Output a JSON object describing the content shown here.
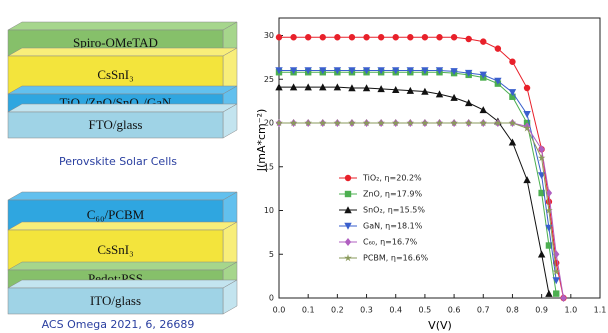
{
  "diagrams": {
    "top_stack": {
      "layers": [
        "Spiro-OMeTAD",
        "CsSnI₃",
        "TiO₂/ZnO/SnO₂/GaN",
        "FTO/glass"
      ],
      "caption": "Perovskite Solar Cells"
    },
    "bottom_stack": {
      "layers": [
        "C₆₀/PCBM",
        "CsSnI₃",
        "Pedot:PSS",
        "ITO/glass"
      ],
      "caption": "ACS Omega 2021, 6, 26689"
    }
  },
  "chart_data": {
    "type": "line",
    "x_label": "V(V)",
    "y_label": "J(mA*cm⁻²)",
    "x": [
      0,
      0.05,
      0.1,
      0.15,
      0.2,
      0.25,
      0.3,
      0.35,
      0.4,
      0.45,
      0.5,
      0.55,
      0.6,
      0.65,
      0.7,
      0.75,
      0.8,
      0.85,
      0.9,
      0.925,
      0.95,
      0.975
    ],
    "xlim": [
      0,
      1.1
    ],
    "xticks": [
      {
        "value": 0,
        "label": "0.0"
      },
      0.1,
      0.2,
      0.3,
      0.4,
      0.5,
      0.6,
      0.7,
      0.8,
      0.9,
      {
        "value": 1,
        "label": "1.0"
      },
      1.1
    ],
    "ylim": [
      0,
      32
    ],
    "yticks": [
      0,
      5,
      10,
      15,
      20,
      25,
      30
    ],
    "legend": "lower left",
    "series": [
      {
        "name": "TiO₂,   η=20.2%",
        "color": "#e8202a",
        "marker": "circle",
        "values": [
          29.8,
          29.8,
          29.8,
          29.8,
          29.8,
          29.8,
          29.8,
          29.8,
          29.8,
          29.8,
          29.8,
          29.8,
          29.8,
          29.6,
          29.3,
          28.5,
          27,
          24,
          17,
          11,
          4,
          0
        ]
      },
      {
        "name": "ZnO,    η=17.9%",
        "color": "#4caf50",
        "marker": "square",
        "values": [
          25.8,
          25.8,
          25.8,
          25.8,
          25.8,
          25.8,
          25.8,
          25.8,
          25.8,
          25.8,
          25.8,
          25.8,
          25.7,
          25.5,
          25.2,
          24.5,
          23,
          20,
          12,
          6,
          0.5,
          null
        ]
      },
      {
        "name": "SnO₂,   η=15.5%",
        "color": "#111111",
        "marker": "triangle",
        "values": [
          24.1,
          24.1,
          24.1,
          24.1,
          24.1,
          24.0,
          24.0,
          23.9,
          23.8,
          23.7,
          23.6,
          23.3,
          22.9,
          22.3,
          21.5,
          20.2,
          17.8,
          13.5,
          5,
          0.5,
          null,
          null
        ]
      },
      {
        "name": "GaN,    η=18.1%",
        "color": "#3a5fcd",
        "marker": "down",
        "values": [
          26,
          26,
          26,
          26,
          26,
          26,
          26,
          26,
          26,
          26,
          26,
          26,
          25.9,
          25.7,
          25.5,
          24.8,
          23.5,
          21,
          14,
          8,
          2,
          null
        ]
      },
      {
        "name": "C₆₀,    η=16.7%",
        "color": "#b05fc0",
        "marker": "diamond",
        "values": [
          20,
          20,
          20,
          20,
          20,
          20,
          20,
          20,
          20,
          20,
          20,
          20,
          20,
          20,
          20,
          20,
          20,
          19.6,
          17,
          12,
          5,
          0
        ]
      },
      {
        "name": "PCBM, η=16.6%",
        "color": "#8a9a5b",
        "marker": "star",
        "values": [
          20,
          20,
          20,
          20,
          20,
          20,
          20,
          20,
          20,
          20,
          20,
          20,
          20,
          20,
          20,
          20,
          20,
          19.4,
          16,
          10,
          3,
          null
        ]
      }
    ]
  }
}
